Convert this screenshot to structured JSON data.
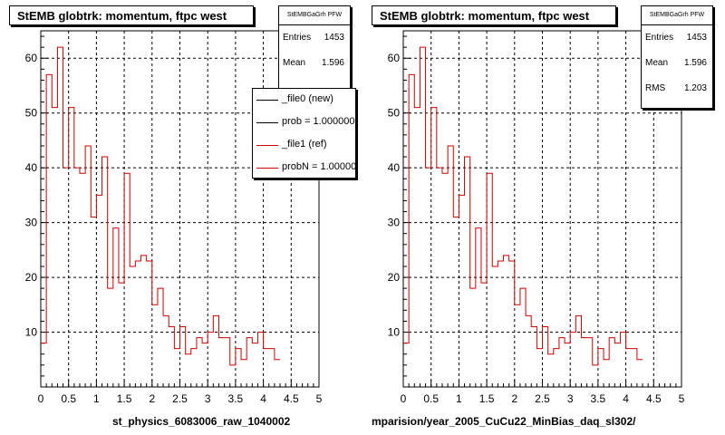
{
  "colors": {
    "hist": "#d00000",
    "new_line": "#000000",
    "ref_line": "#d00000",
    "frame": "#000000"
  },
  "footer": {
    "small_text": ""
  },
  "chart_data": [
    {
      "type": "histogram",
      "title": "StEMB globtrk: momentum, ftpc west",
      "xlabel": "st_physics_6083006_raw_1040002",
      "ylabel": "",
      "xlim": [
        0,
        5
      ],
      "ylim": [
        0,
        65
      ],
      "x_ticks": [
        "0",
        "0.5",
        "1",
        "1.5",
        "2",
        "2.5",
        "3",
        "3.5",
        "4",
        "4.5",
        "5"
      ],
      "y_ticks": [
        "10",
        "20",
        "30",
        "40",
        "50",
        "60"
      ],
      "grid": true,
      "bin_width": 0.1,
      "values": [
        8,
        57,
        51,
        62,
        40,
        51,
        40,
        39,
        44,
        31,
        35,
        42,
        18,
        29,
        19,
        39,
        22,
        23,
        24,
        23,
        15,
        18,
        13,
        11,
        7,
        11,
        6,
        7,
        9,
        8,
        10,
        13,
        9,
        9,
        4,
        7,
        5,
        9,
        8,
        10,
        7,
        7,
        5
      ],
      "stats": {
        "name": "StEMBGaGrh PFW",
        "rows": [
          {
            "label": "Entries",
            "value": "1453"
          },
          {
            "label": "Mean",
            "value": "1.596"
          }
        ]
      },
      "legend": {
        "placement": "top-right",
        "entries": [
          {
            "label": "_file0 (new)",
            "color": "#000000"
          },
          {
            "label": "prob = 1.000000",
            "color": "#000000"
          },
          {
            "label": "_file1 (ref)",
            "color": "#d00000"
          },
          {
            "label": "probN = 1.000000",
            "color": "#d00000"
          }
        ]
      }
    },
    {
      "type": "histogram",
      "title": "StEMB globtrk: momentum, ftpc west",
      "xlabel": "mparision/year_2005_CuCu22_MinBias_daq_sl302/",
      "ylabel": "",
      "xlim": [
        0,
        5
      ],
      "ylim": [
        0,
        65
      ],
      "x_ticks": [
        "0",
        "0.5",
        "1",
        "1.5",
        "2",
        "2.5",
        "3",
        "3.5",
        "4",
        "4.5",
        "5"
      ],
      "y_ticks": [
        "10",
        "20",
        "30",
        "40",
        "50",
        "60"
      ],
      "grid": true,
      "bin_width": 0.1,
      "values": [
        8,
        57,
        51,
        62,
        40,
        51,
        40,
        39,
        44,
        31,
        35,
        42,
        18,
        29,
        19,
        39,
        22,
        23,
        24,
        23,
        15,
        18,
        13,
        11,
        7,
        11,
        6,
        7,
        9,
        8,
        10,
        13,
        9,
        9,
        4,
        7,
        5,
        9,
        8,
        10,
        7,
        7,
        5
      ],
      "stats": {
        "name": "StEMBGaGrh PFW",
        "rows": [
          {
            "label": "Entries",
            "value": "1453"
          },
          {
            "label": "Mean",
            "value": "1.596"
          },
          {
            "label": "RMS",
            "value": "1.203"
          }
        ]
      }
    }
  ]
}
